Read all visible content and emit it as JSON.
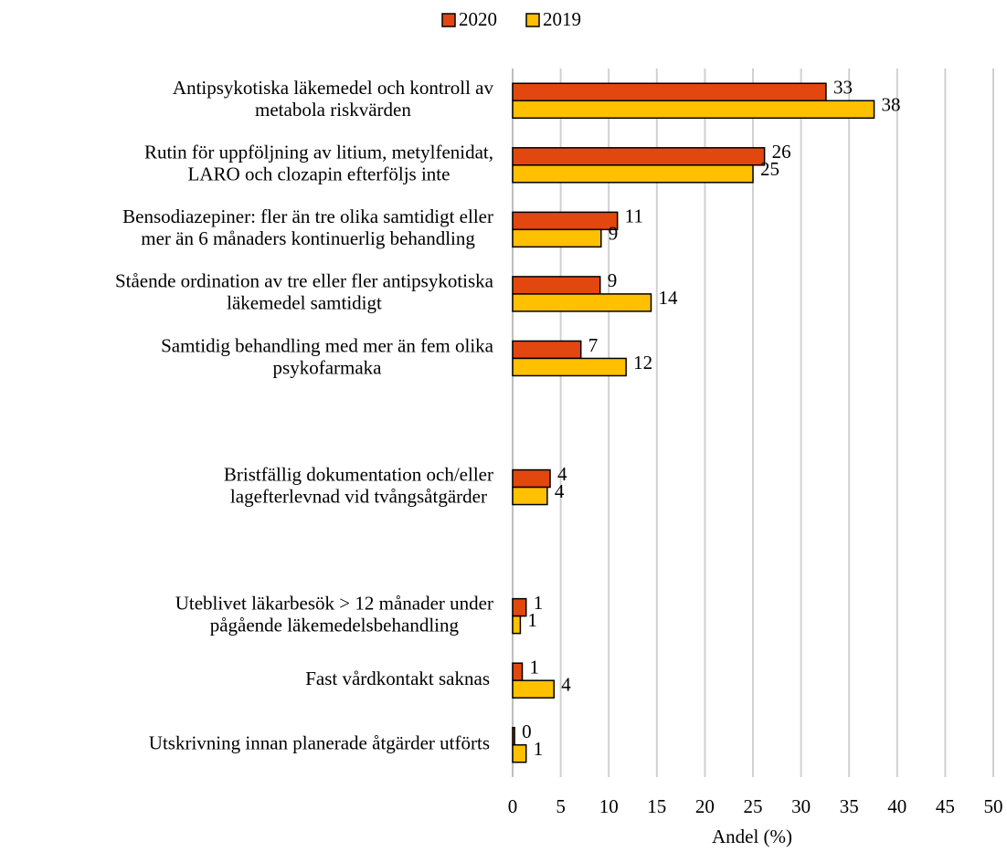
{
  "chart_data": {
    "type": "bar",
    "orientation": "horizontal",
    "x_label": "Andel (%)",
    "categories": [
      [
        "Antipsykotiska läkemedel och kontroll av",
        "metabola riskvärden"
      ],
      [
        "Rutin för uppföljning av litium, metylfenidat,",
        "LARO och clozapin efterföljs inte"
      ],
      [
        "Bensodiazepiner: fler än tre olika samtidigt eller",
        "mer än 6 månaders kontinuerlig behandling"
      ],
      [
        "Stående ordination av tre eller fler antipsykotiska",
        "läkemedel samtidigt"
      ],
      [
        "Samtidig behandling med mer än fem olika",
        "psykofarmaka"
      ],
      null,
      [
        "Bristfällig dokumentation och/eller",
        "lagefterlevnad vid tvångsåtgärder"
      ],
      null,
      [
        "Uteblivet läkarbesök > 12 månader under",
        "pågående läkemedelsbehandling"
      ],
      [
        "Fast vårdkontakt saknas"
      ],
      [
        "Utskrivning innan planerade åtgärder utförts"
      ]
    ],
    "series": [
      {
        "name": "2020",
        "color": "#e2470f",
        "values": [
          32.6,
          26.2,
          10.9,
          9.1,
          7.1,
          null,
          3.9,
          null,
          1.4,
          1.0,
          0.2
        ],
        "value_labels": [
          "33",
          "26",
          "11",
          "9",
          "7",
          null,
          "4",
          null,
          "1",
          "1",
          "0"
        ]
      },
      {
        "name": "2019",
        "color": "#ffc000",
        "values": [
          37.6,
          25.0,
          9.2,
          14.4,
          11.8,
          null,
          3.6,
          null,
          0.8,
          4.3,
          1.4
        ],
        "value_labels": [
          "38",
          "25",
          "9",
          "14",
          "12",
          null,
          "4",
          null,
          "1",
          "4",
          "1"
        ]
      }
    ],
    "xlim": [
      0,
      50
    ],
    "xticks": [
      0,
      5,
      10,
      15,
      20,
      25,
      30,
      35,
      40,
      45,
      50
    ],
    "grid": true,
    "legend": "top"
  }
}
